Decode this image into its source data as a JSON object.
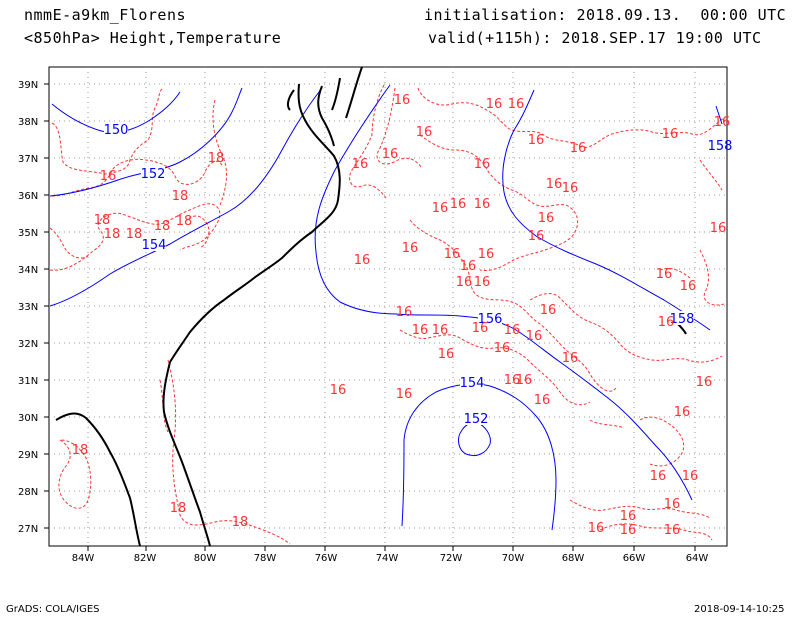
{
  "header": {
    "model": "nmmE-a9km_Florens",
    "field": "<850hPa> Height,Temperature",
    "init": "initialisation: 2018.09.13.  00:00 UTC",
    "valid": "valid(+115h): 2018.SEP.17 19:00 UTC"
  },
  "footer": {
    "left": "GrADS: COLA/IGES",
    "right": "2018-09-14-10:25"
  },
  "map": {
    "lat_labels": [
      "39N",
      "38N",
      "37N",
      "36N",
      "35N",
      "34N",
      "33N",
      "32N",
      "31N",
      "30N",
      "29N",
      "28N",
      "27N"
    ],
    "lon_labels": [
      "84W",
      "82W",
      "80W",
      "78W",
      "76W",
      "74W",
      "72W",
      "70W",
      "68W",
      "66W",
      "64W"
    ],
    "colors": {
      "height": "#0000ff",
      "temperature": "#ff3333",
      "coast": "#000000",
      "grid": "#999999"
    },
    "height_labels": [
      "150",
      "152",
      "154",
      "156",
      "154",
      "152",
      "158",
      "158"
    ],
    "temperature_labels": [
      "16",
      "16",
      "16",
      "16",
      "18",
      "18",
      "18",
      "18",
      "18",
      "18",
      "18",
      "16",
      "16",
      "16",
      "16",
      "16",
      "16",
      "16",
      "16",
      "16",
      "16",
      "16",
      "16",
      "16",
      "16",
      "16",
      "16",
      "16",
      "16",
      "16",
      "16",
      "16",
      "16",
      "16",
      "16",
      "16",
      "16",
      "16",
      "16",
      "16",
      "16",
      "16",
      "16",
      "16",
      "16",
      "16",
      "16",
      "16",
      "16",
      "16",
      "16",
      "16",
      "16",
      "16",
      "16",
      "16",
      "18",
      "18",
      "18",
      "16"
    ]
  }
}
